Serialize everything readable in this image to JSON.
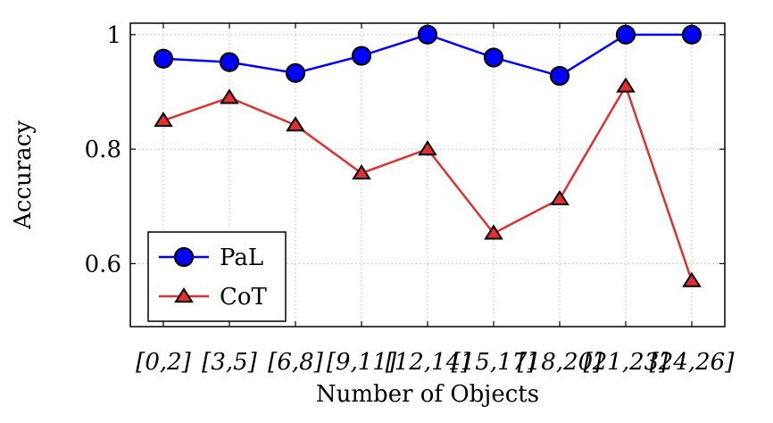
{
  "chart_data": {
    "type": "line",
    "xlabel": "Number of Objects",
    "ylabel": "Accuracy",
    "categories": [
      "[0,2]",
      "[3,5]",
      "[6,8]",
      "[9,11]",
      "[12,14]",
      "[15,17]",
      "[18,20]",
      "[21,23]",
      "[24,26]"
    ],
    "ylim": [
      0.49,
      1.02
    ],
    "yticks": [
      0.6,
      0.8,
      1
    ],
    "ytick_labels": [
      "0.6",
      "0.8",
      "1"
    ],
    "grid": true,
    "legend_position": "bottom-left",
    "series": [
      {
        "name": "PaL",
        "color": "#0000ff",
        "marker": "circle",
        "values": [
          0.958,
          0.952,
          0.933,
          0.963,
          1.0,
          0.96,
          0.928,
          1.0,
          1.0
        ]
      },
      {
        "name": "CoT",
        "color": "#e03030",
        "marker": "triangle",
        "values": [
          0.85,
          0.89,
          0.842,
          0.758,
          0.8,
          0.653,
          0.713,
          0.91,
          0.57
        ]
      }
    ]
  }
}
